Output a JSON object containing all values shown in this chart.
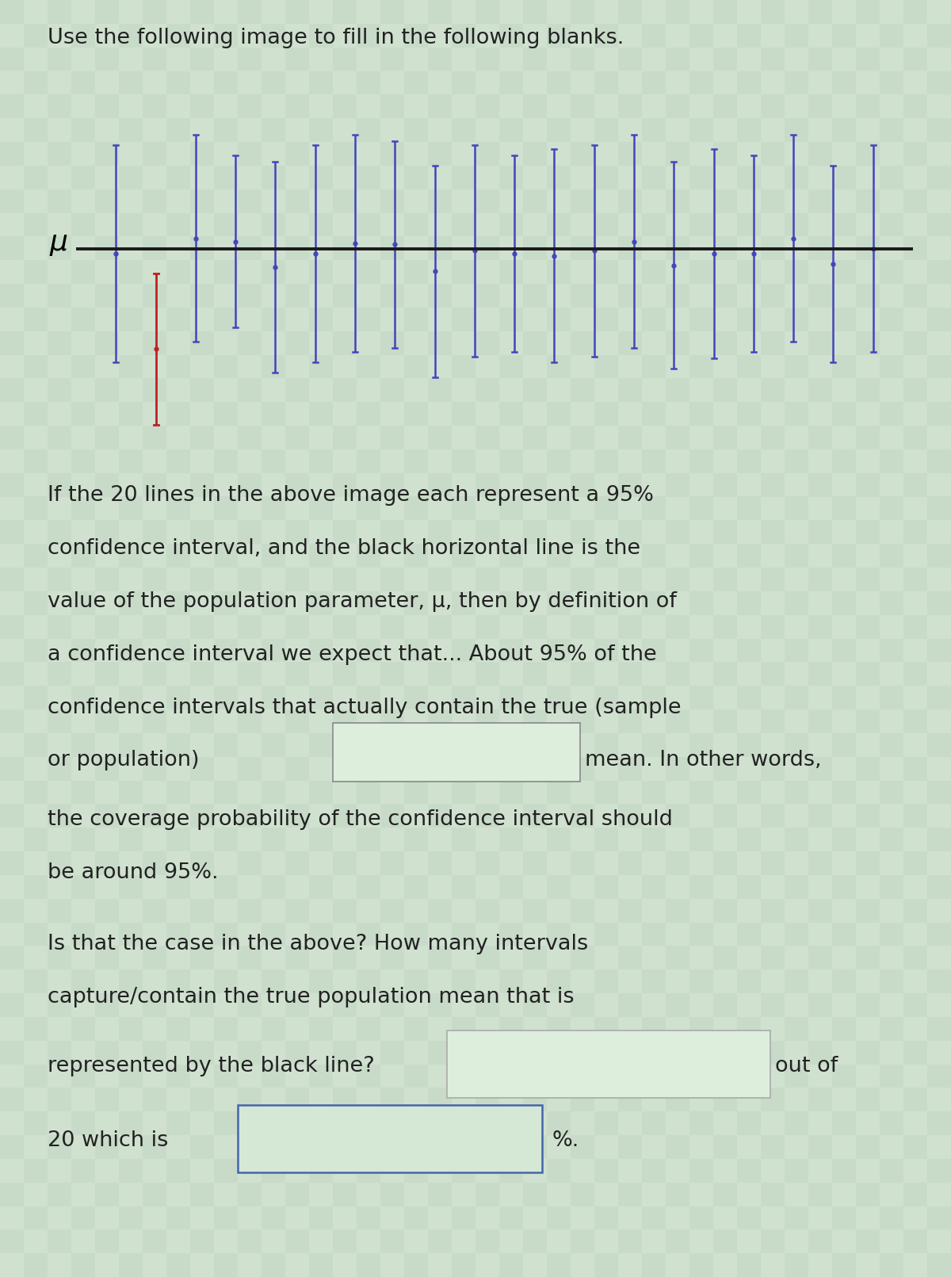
{
  "title": "Use the following image to fill in the following blanks.",
  "mu": 0.0,
  "red_index": 1,
  "ci_color_blue": "#4444bb",
  "ci_color_red": "#bb2222",
  "mu_line_color": "#1a1a1a",
  "background_color": "#c8dac8",
  "text_color": "#222222",
  "ci_lowers": [
    -0.55,
    -0.85,
    -0.45,
    -0.38,
    -0.6,
    -0.55,
    -0.5,
    -0.48,
    -0.62,
    -0.52,
    -0.5,
    -0.55,
    -0.52,
    -0.48,
    -0.58,
    -0.53,
    -0.5,
    -0.45,
    -0.55,
    -0.5
  ],
  "ci_uppers": [
    0.5,
    -0.12,
    0.55,
    0.45,
    0.42,
    0.5,
    0.55,
    0.52,
    0.4,
    0.5,
    0.45,
    0.48,
    0.5,
    0.55,
    0.42,
    0.48,
    0.45,
    0.55,
    0.4,
    0.5
  ],
  "figsize": [
    12.0,
    16.11
  ],
  "dpi": 100
}
